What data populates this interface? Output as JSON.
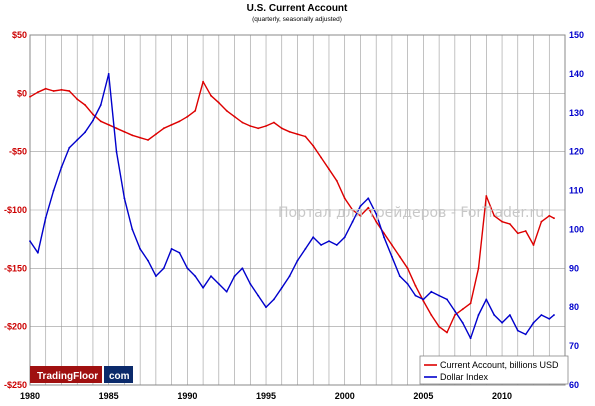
{
  "chart_data": {
    "type": "line",
    "title": "U.S. Current Account",
    "subtitle": "(quarterly, seasonally adjusted)",
    "x_range": [
      1980,
      2014
    ],
    "x_ticks": [
      "1980",
      "1985",
      "1990",
      "1995",
      "2000",
      "2005",
      "2010"
    ],
    "left_axis": {
      "ylim": [
        -250,
        50
      ],
      "ticks": [
        "$50",
        "$0",
        "-$50",
        "-$100",
        "-$150",
        "-$200",
        "-$250"
      ],
      "tick_values": [
        50,
        0,
        -50,
        -100,
        -150,
        -200,
        -250
      ],
      "color": "#cc0000"
    },
    "right_axis": {
      "ylim": [
        60,
        150
      ],
      "ticks": [
        "150",
        "140",
        "130",
        "120",
        "110",
        "100",
        "90",
        "80",
        "70",
        "60"
      ],
      "tick_values": [
        150,
        140,
        130,
        120,
        110,
        100,
        90,
        80,
        70,
        60
      ],
      "color": "#0000cc"
    },
    "grid": true,
    "legend_position": "bottom-right",
    "series": [
      {
        "name": "Current Account, billions USD",
        "axis": "left",
        "color": "#dd0000",
        "points": [
          [
            1980.0,
            -3
          ],
          [
            1980.5,
            1
          ],
          [
            1981.0,
            4
          ],
          [
            1981.5,
            2
          ],
          [
            1982.0,
            3
          ],
          [
            1982.5,
            2
          ],
          [
            1983.0,
            -5
          ],
          [
            1983.5,
            -10
          ],
          [
            1984.0,
            -18
          ],
          [
            1984.5,
            -24
          ],
          [
            1985.0,
            -27
          ],
          [
            1985.5,
            -30
          ],
          [
            1986.0,
            -33
          ],
          [
            1986.5,
            -36
          ],
          [
            1987.0,
            -38
          ],
          [
            1987.5,
            -40
          ],
          [
            1988.0,
            -35
          ],
          [
            1988.5,
            -30
          ],
          [
            1989.0,
            -27
          ],
          [
            1989.5,
            -24
          ],
          [
            1990.0,
            -20
          ],
          [
            1990.5,
            -15
          ],
          [
            1991.0,
            10
          ],
          [
            1991.5,
            -2
          ],
          [
            1992.0,
            -8
          ],
          [
            1992.5,
            -15
          ],
          [
            1993.0,
            -20
          ],
          [
            1993.5,
            -25
          ],
          [
            1994.0,
            -28
          ],
          [
            1994.5,
            -30
          ],
          [
            1995.0,
            -28
          ],
          [
            1995.5,
            -25
          ],
          [
            1996.0,
            -30
          ],
          [
            1996.5,
            -33
          ],
          [
            1997.0,
            -35
          ],
          [
            1997.5,
            -37
          ],
          [
            1998.0,
            -45
          ],
          [
            1998.5,
            -55
          ],
          [
            1999.0,
            -65
          ],
          [
            1999.5,
            -75
          ],
          [
            2000.0,
            -90
          ],
          [
            2000.5,
            -100
          ],
          [
            2001.0,
            -105
          ],
          [
            2001.5,
            -98
          ],
          [
            2002.0,
            -110
          ],
          [
            2002.5,
            -120
          ],
          [
            2003.0,
            -130
          ],
          [
            2003.5,
            -140
          ],
          [
            2004.0,
            -150
          ],
          [
            2004.5,
            -165
          ],
          [
            2005.0,
            -178
          ],
          [
            2005.5,
            -190
          ],
          [
            2006.0,
            -200
          ],
          [
            2006.5,
            -205
          ],
          [
            2007.0,
            -190
          ],
          [
            2007.5,
            -185
          ],
          [
            2008.0,
            -180
          ],
          [
            2008.5,
            -150
          ],
          [
            2009.0,
            -88
          ],
          [
            2009.5,
            -105
          ],
          [
            2010.0,
            -110
          ],
          [
            2010.5,
            -112
          ],
          [
            2011.0,
            -120
          ],
          [
            2011.5,
            -118
          ],
          [
            2012.0,
            -130
          ],
          [
            2012.5,
            -110
          ],
          [
            2013.0,
            -105
          ],
          [
            2013.3,
            -107
          ]
        ]
      },
      {
        "name": "Dollar Index",
        "axis": "right",
        "color": "#0000cc",
        "points": [
          [
            1980.0,
            97
          ],
          [
            1980.5,
            94
          ],
          [
            1981.0,
            103
          ],
          [
            1981.5,
            110
          ],
          [
            1982.0,
            116
          ],
          [
            1982.5,
            121
          ],
          [
            1983.0,
            123
          ],
          [
            1983.5,
            125
          ],
          [
            1984.0,
            128
          ],
          [
            1984.5,
            132
          ],
          [
            1985.0,
            140
          ],
          [
            1985.5,
            120
          ],
          [
            1986.0,
            108
          ],
          [
            1986.5,
            100
          ],
          [
            1987.0,
            95
          ],
          [
            1987.5,
            92
          ],
          [
            1988.0,
            88
          ],
          [
            1988.5,
            90
          ],
          [
            1989.0,
            95
          ],
          [
            1989.5,
            94
          ],
          [
            1990.0,
            90
          ],
          [
            1990.5,
            88
          ],
          [
            1991.0,
            85
          ],
          [
            1991.5,
            88
          ],
          [
            1992.0,
            86
          ],
          [
            1992.5,
            84
          ],
          [
            1993.0,
            88
          ],
          [
            1993.5,
            90
          ],
          [
            1994.0,
            86
          ],
          [
            1994.5,
            83
          ],
          [
            1995.0,
            80
          ],
          [
            1995.5,
            82
          ],
          [
            1996.0,
            85
          ],
          [
            1996.5,
            88
          ],
          [
            1997.0,
            92
          ],
          [
            1997.5,
            95
          ],
          [
            1998.0,
            98
          ],
          [
            1998.5,
            96
          ],
          [
            1999.0,
            97
          ],
          [
            1999.5,
            96
          ],
          [
            2000.0,
            98
          ],
          [
            2000.5,
            102
          ],
          [
            2001.0,
            106
          ],
          [
            2001.5,
            108
          ],
          [
            2002.0,
            104
          ],
          [
            2002.5,
            98
          ],
          [
            2003.0,
            93
          ],
          [
            2003.5,
            88
          ],
          [
            2004.0,
            86
          ],
          [
            2004.5,
            83
          ],
          [
            2005.0,
            82
          ],
          [
            2005.5,
            84
          ],
          [
            2006.0,
            83
          ],
          [
            2006.5,
            82
          ],
          [
            2007.0,
            79
          ],
          [
            2007.5,
            76
          ],
          [
            2008.0,
            72
          ],
          [
            2008.5,
            78
          ],
          [
            2009.0,
            82
          ],
          [
            2009.5,
            78
          ],
          [
            2010.0,
            76
          ],
          [
            2010.5,
            78
          ],
          [
            2011.0,
            74
          ],
          [
            2011.5,
            73
          ],
          [
            2012.0,
            76
          ],
          [
            2012.5,
            78
          ],
          [
            2013.0,
            77
          ],
          [
            2013.3,
            78
          ]
        ]
      }
    ]
  },
  "watermark_text": "Портал для трейдеров - ForTrader.ru",
  "brand": {
    "name": "TradingFloor",
    "suffix": "com"
  }
}
